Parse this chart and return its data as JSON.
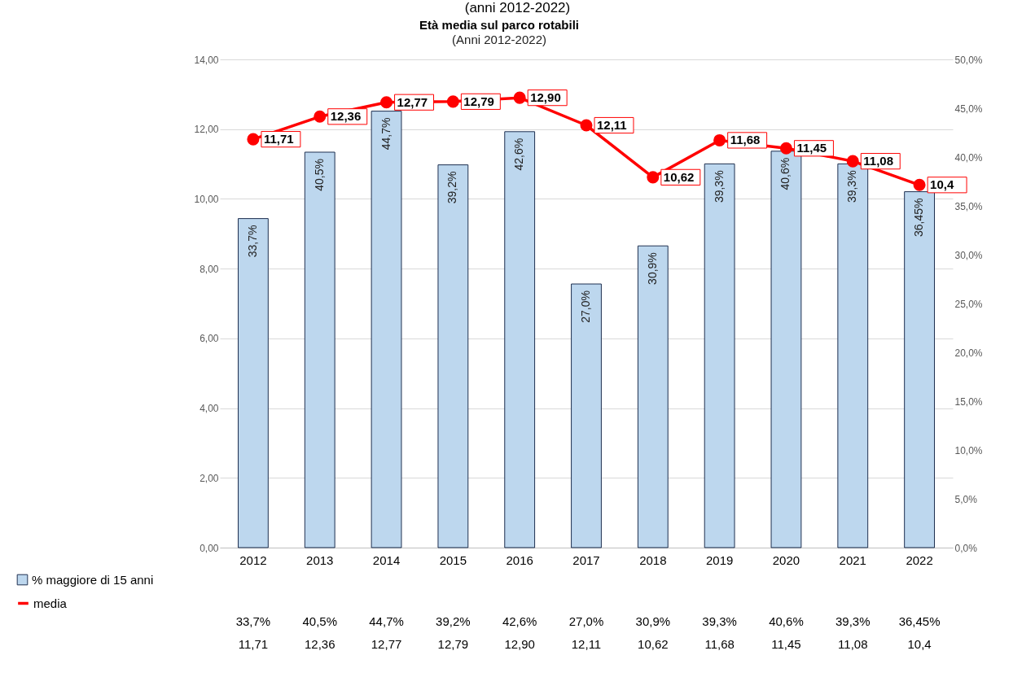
{
  "chart_data": {
    "type": "bar",
    "title": "Età media sul parco rotabili",
    "subtitle": "(Anni 2012-2022)",
    "annotations": [
      "(anni 2012-2022)"
    ],
    "categories": [
      "2012",
      "2013",
      "2014",
      "2015",
      "2016",
      "2017",
      "2018",
      "2019",
      "2020",
      "2021",
      "2022"
    ],
    "series": [
      {
        "name": "% maggiore di 15 anni",
        "axis": "y2",
        "color": "#bdd7ee",
        "values": [
          33.7,
          40.5,
          44.7,
          39.2,
          42.6,
          27.0,
          30.9,
          39.3,
          40.6,
          39.3,
          36.45
        ],
        "value_labels": [
          "33,7%",
          "40,5%",
          "44,7%",
          "39,2%",
          "42,6%",
          "27,0%",
          "30,9%",
          "39,3%",
          "40,6%",
          "39,3%",
          "36,45%"
        ]
      },
      {
        "name": "media",
        "type": "line",
        "color": "#ff0000",
        "values": [
          11.71,
          12.36,
          12.77,
          12.79,
          12.9,
          12.11,
          10.62,
          11.68,
          11.45,
          11.08,
          10.4
        ],
        "value_labels": [
          "11,71",
          "12,36",
          "12,77",
          "12,79",
          "12,90",
          "12,11",
          "10,62",
          "11,68",
          "11,45",
          "11,08",
          "10,4"
        ]
      }
    ],
    "ylim": [
      0,
      14
    ],
    "yticks": [
      {
        "value": 0,
        "label": "0,00"
      },
      {
        "value": 2,
        "label": "2,00"
      },
      {
        "value": 4,
        "label": "4,00"
      },
      {
        "value": 6,
        "label": "6,00"
      },
      {
        "value": 8,
        "label": "8,00"
      },
      {
        "value": 10,
        "label": "10,00"
      },
      {
        "value": 12,
        "label": "12,00"
      },
      {
        "value": 14,
        "label": "14,00"
      }
    ],
    "y2lim": [
      0,
      50
    ],
    "y2ticks": [
      {
        "value": 0,
        "label": "0,0%"
      },
      {
        "value": 5,
        "label": "5,0%"
      },
      {
        "value": 10,
        "label": "10,0%"
      },
      {
        "value": 15,
        "label": "15,0%"
      },
      {
        "value": 20,
        "label": "20,0%"
      },
      {
        "value": 25,
        "label": "25,0%"
      },
      {
        "value": 30,
        "label": "30,0%"
      },
      {
        "value": 35,
        "label": "35,0%"
      },
      {
        "value": 40,
        "label": "40,0%"
      },
      {
        "value": 45,
        "label": "45,0%"
      },
      {
        "value": 50,
        "label": "50,0%"
      }
    ],
    "grid": "y",
    "legend": "bottom left",
    "marker": "circle",
    "line_style": "solid"
  }
}
